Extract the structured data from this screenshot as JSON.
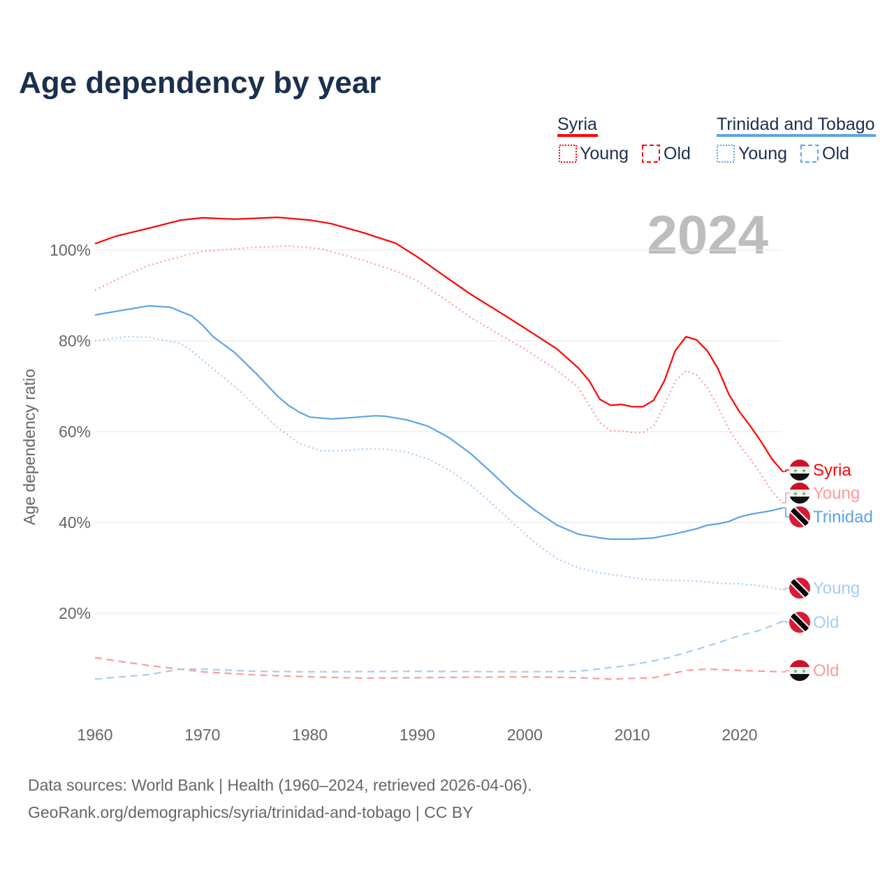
{
  "chart_data": {
    "type": "line",
    "title": "Age dependency by year",
    "ylabel": "Age dependency ratio",
    "xlabel": "",
    "xlim": [
      1960,
      2024
    ],
    "ylim": [
      0,
      110
    ],
    "x_ticks": [
      "1960",
      "1970",
      "1980",
      "1990",
      "2000",
      "2010",
      "2020"
    ],
    "x_tick_values": [
      1960,
      1970,
      1980,
      1990,
      2000,
      2010,
      2020
    ],
    "y_ticks": [
      "20%",
      "40%",
      "60%",
      "80%",
      "100%"
    ],
    "y_tick_values": [
      20,
      40,
      60,
      80,
      100
    ],
    "grid": true,
    "year_label": "2024",
    "legend": {
      "placement": "top-right",
      "groups": [
        {
          "country": "Syria",
          "color": "#ff0000",
          "items": [
            "Young",
            "Old"
          ]
        },
        {
          "country": "Trinidad and Tobago",
          "color": "#5ba3ea",
          "items": [
            "Young",
            "Old"
          ]
        }
      ]
    },
    "series": [
      {
        "name": "Syria",
        "country": "Syria",
        "kind": "total",
        "color": "#ff0000",
        "style": "solid",
        "end_label": "Syria",
        "x": [
          1960,
          1962,
          1965,
          1968,
          1970,
          1973,
          1977,
          1980,
          1982,
          1985,
          1988,
          1990,
          1993,
          1995,
          1998,
          2000,
          2003,
          2005,
          2006,
          2007,
          2008,
          2009,
          2010,
          2011,
          2012,
          2013,
          2014,
          2015,
          2016,
          2017,
          2018,
          2019,
          2020,
          2021,
          2022,
          2023,
          2024
        ],
        "y": [
          101.4,
          103.1,
          104.8,
          106.6,
          107.1,
          106.8,
          107.2,
          106.6,
          105.8,
          103.8,
          101.5,
          98.5,
          93.5,
          90.2,
          85.8,
          82.8,
          78.2,
          74.0,
          71.2,
          67.1,
          65.8,
          66.0,
          65.5,
          65.5,
          66.9,
          71.2,
          77.8,
          80.9,
          80.2,
          77.8,
          73.8,
          68.2,
          64.3,
          61.2,
          57.8,
          54.0,
          51.2
        ]
      },
      {
        "name": "Syria Young",
        "country": "Syria",
        "kind": "young",
        "color": "#ff9a9a",
        "style": "dotted",
        "end_label": "Young",
        "x": [
          1960,
          1963,
          1965,
          1968,
          1970,
          1975,
          1978,
          1981,
          1985,
          1988,
          1990,
          1993,
          1995,
          1998,
          2000,
          2003,
          2005,
          2006,
          2007,
          2008,
          2009,
          2010,
          2011,
          2012,
          2013,
          2014,
          2015,
          2016,
          2017,
          2018,
          2019,
          2020,
          2021,
          2022,
          2023,
          2024
        ],
        "y": [
          91.2,
          94.6,
          96.6,
          98.6,
          99.7,
          100.6,
          100.9,
          100.3,
          97.7,
          95.4,
          93.2,
          88.5,
          85.1,
          80.9,
          78.2,
          73.5,
          69.7,
          65.8,
          62.0,
          60.2,
          60.2,
          59.8,
          59.8,
          61.2,
          65.8,
          71.2,
          73.4,
          72.5,
          69.7,
          65.4,
          60.5,
          56.9,
          54.0,
          50.5,
          46.9,
          44.3
        ]
      },
      {
        "name": "Syria Old",
        "country": "Syria",
        "kind": "old",
        "color": "#ff9a9a",
        "style": "dashed",
        "end_label": "Old",
        "x": [
          1960,
          1965,
          1970,
          1975,
          1980,
          1985,
          1990,
          1995,
          2000,
          2005,
          2008,
          2012,
          2015,
          2017,
          2020,
          2024
        ],
        "y": [
          10.2,
          8.5,
          7.1,
          6.4,
          6.0,
          5.7,
          5.8,
          5.9,
          6.0,
          5.8,
          5.5,
          5.8,
          7.4,
          7.7,
          7.4,
          7.1
        ]
      },
      {
        "name": "Trinidad and Tobago",
        "country": "Trinidad and Tobago",
        "kind": "total",
        "color": "#5ba3ea",
        "style": "solid",
        "end_label": "Trinidad",
        "x": [
          1960,
          1963,
          1965,
          1967,
          1969,
          1970,
          1971,
          1973,
          1975,
          1977,
          1978,
          1979,
          1980,
          1982,
          1984,
          1986,
          1987,
          1989,
          1991,
          1993,
          1995,
          1997,
          1999,
          2001,
          2003,
          2005,
          2007,
          2008,
          2010,
          2012,
          2014,
          2016,
          2017,
          2018,
          2019,
          2020,
          2021,
          2023,
          2024
        ],
        "y": [
          85.7,
          86.9,
          87.7,
          87.4,
          85.5,
          83.5,
          80.9,
          77.4,
          72.8,
          67.8,
          65.8,
          64.3,
          63.2,
          62.8,
          63.1,
          63.5,
          63.4,
          62.6,
          61.2,
          58.6,
          55.1,
          50.8,
          46.3,
          42.6,
          39.4,
          37.4,
          36.6,
          36.3,
          36.3,
          36.6,
          37.5,
          38.6,
          39.4,
          39.7,
          40.2,
          41.2,
          41.8,
          42.6,
          43.2
        ]
      },
      {
        "name": "Trinidad and Tobago Young",
        "country": "Trinidad and Tobago",
        "kind": "young",
        "color": "#a6ccf3",
        "style": "dotted",
        "end_label": "Young",
        "x": [
          1960,
          1963,
          1965,
          1968,
          1969,
          1971,
          1973,
          1975,
          1977,
          1979,
          1981,
          1983,
          1985,
          1987,
          1989,
          1991,
          1993,
          1995,
          1997,
          1999,
          2001,
          2003,
          2005,
          2007,
          2009,
          2011,
          2014,
          2016,
          2018,
          2020,
          2022,
          2024
        ],
        "y": [
          80.0,
          80.9,
          80.8,
          79.4,
          77.8,
          73.8,
          70.0,
          65.5,
          60.9,
          57.4,
          55.8,
          55.8,
          56.2,
          56.2,
          55.5,
          54.0,
          51.5,
          48.2,
          44.0,
          39.7,
          35.4,
          32.0,
          30.0,
          28.9,
          28.2,
          27.5,
          27.2,
          27.1,
          26.6,
          26.5,
          26.0,
          25.2
        ]
      },
      {
        "name": "Trinidad and Tobago Old",
        "country": "Trinidad and Tobago",
        "kind": "old",
        "color": "#a6ccf3",
        "style": "dashed",
        "end_label": "Old",
        "x": [
          1960,
          1965,
          1968,
          1970,
          1975,
          1980,
          1990,
          2000,
          2005,
          2010,
          2013,
          2016,
          2018,
          2020,
          2022,
          2024
        ],
        "y": [
          5.5,
          6.5,
          7.7,
          7.7,
          7.2,
          7.1,
          7.2,
          7.1,
          7.2,
          8.6,
          10.0,
          12.0,
          13.5,
          15.1,
          16.3,
          18.2
        ]
      }
    ]
  },
  "footer": {
    "line1": "Data sources: World Bank | Health (1960–2024, retrieved 2026-04-06).",
    "line2": "GeoRank.org/demographics/syria/trinidad-and-tobago | CC BY"
  }
}
